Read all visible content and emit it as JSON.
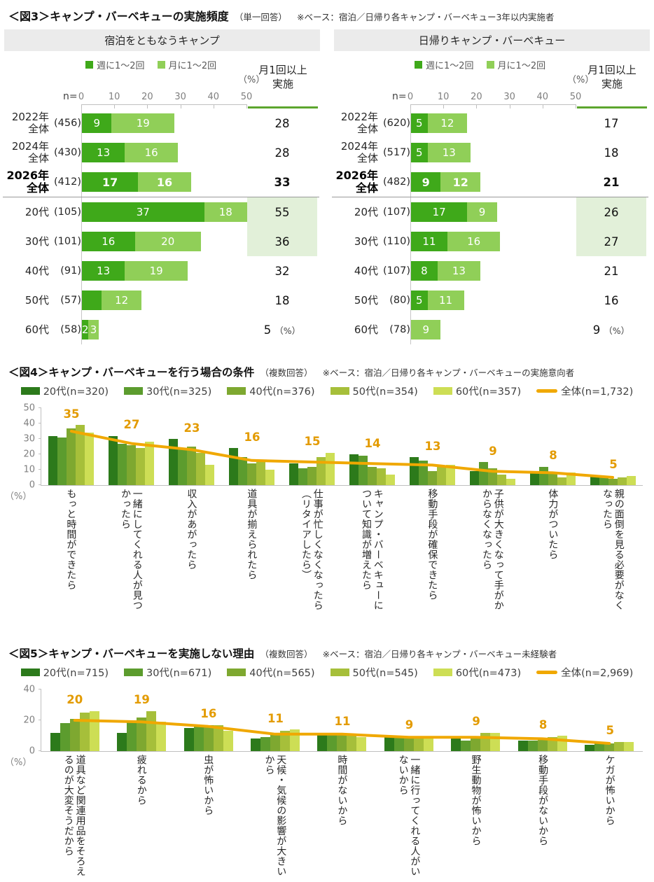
{
  "chart_data": [
    {
      "id": "fig3",
      "type": "bar",
      "subtype": "horizontal-stacked",
      "tag": "＜図3＞",
      "title": "キャンプ・バーベキューの実施頻度",
      "note": "（単一回答）",
      "base": "※ベース：宿泊／日帰り各キャンプ・バーベキュー3年以内実施者",
      "legend": [
        "週に1〜2回",
        "月に1〜2回"
      ],
      "colors": {
        "week": "#3FA91A",
        "month": "#90CF58",
        "highlight_bg": "#E2F0D9",
        "total_underline": "#5CA62E",
        "panel_header_bg": "#EBEBEB"
      },
      "xlim": [
        0,
        50
      ],
      "x_ticks": [
        0,
        10,
        20,
        30,
        40,
        50
      ],
      "pct_label": "（%）",
      "n_label": "n=",
      "total_header_lines": [
        "月1回以上",
        "実施"
      ],
      "panels": [
        {
          "title": "宿泊をともなうキャンプ",
          "rows": [
            {
              "label_lines": [
                "2022年",
                "全体"
              ],
              "n": "(456)",
              "week": 9,
              "month": 19,
              "total": "28"
            },
            {
              "label_lines": [
                "2024年",
                "全体"
              ],
              "n": "(430)",
              "week": 13,
              "month": 16,
              "total": "28"
            },
            {
              "label_lines": [
                "2026年",
                "全体"
              ],
              "n": "(412)",
              "week": 17,
              "month": 16,
              "total": "33",
              "bold": true,
              "divider": true
            },
            {
              "label_lines": [
                "20代"
              ],
              "n": "(105)",
              "week": 37,
              "month": 18,
              "total": "55",
              "highlight": true
            },
            {
              "label_lines": [
                "30代"
              ],
              "n": "(101)",
              "week": 16,
              "month": 20,
              "total": "36",
              "highlight": true
            },
            {
              "label_lines": [
                "40代"
              ],
              "n": "(91)",
              "week": 13,
              "month": 19,
              "total": "32"
            },
            {
              "label_lines": [
                "50代"
              ],
              "n": "(57)",
              "week": 6,
              "month": 12,
              "total": "18",
              "hide_week_label": true
            },
            {
              "label_lines": [
                "60代"
              ],
              "n": "(58)",
              "week": 2,
              "month": 3,
              "total": "5",
              "pct_suffix": "（%）"
            }
          ]
        },
        {
          "title": "日帰りキャンプ・バーベキュー",
          "rows": [
            {
              "label_lines": [
                "2022年",
                "全体"
              ],
              "n": "(620)",
              "week": 5,
              "month": 12,
              "total": "17"
            },
            {
              "label_lines": [
                "2024年",
                "全体"
              ],
              "n": "(517)",
              "week": 5,
              "month": 13,
              "total": "18"
            },
            {
              "label_lines": [
                "2026年",
                "全体"
              ],
              "n": "(482)",
              "week": 9,
              "month": 12,
              "total": "21",
              "bold": true,
              "divider": true
            },
            {
              "label_lines": [
                "20代"
              ],
              "n": "(107)",
              "week": 17,
              "month": 9,
              "total": "26",
              "highlight": true
            },
            {
              "label_lines": [
                "30代"
              ],
              "n": "(110)",
              "week": 11,
              "month": 16,
              "total": "27",
              "highlight": true
            },
            {
              "label_lines": [
                "40代"
              ],
              "n": "(107)",
              "week": 8,
              "month": 13,
              "total": "21"
            },
            {
              "label_lines": [
                "50代"
              ],
              "n": "(80)",
              "week": 5,
              "month": 11,
              "total": "16"
            },
            {
              "label_lines": [
                "60代"
              ],
              "n": "(78)",
              "week": 0,
              "month": 9,
              "total": "9",
              "pct_suffix": "（%）"
            }
          ]
        }
      ]
    },
    {
      "id": "fig4",
      "type": "bar",
      "subtype": "grouped-with-line",
      "tag": "＜図4＞",
      "title": "キャンプ・バーベキューを行う場合の条件",
      "note": "（複数回答）",
      "base": "※ベース：宿泊／日帰り各キャンプ・バーベキューの実施意向者",
      "ylim": [
        0,
        50
      ],
      "y_ticks": [
        0,
        10,
        20,
        30,
        40,
        50
      ],
      "pct_label": "（%）",
      "categories": [
        "もっと時間ができたら",
        "一緒にしてくれる人が見つかったら",
        "収入があがったら",
        "道具が揃えられたら",
        "仕事が忙しくなくなったら（リタイアしたら）",
        "キャンプ・バーベキューについて知識が増えたら",
        "移動手段が確保できたら",
        "子供が大きくなって手がかからなくなったら",
        "体力がついたら",
        "親の面倒を見る必要がなくなったら"
      ],
      "series": [
        {
          "name": "20代(n=320)",
          "color": "#2C7A1B",
          "values": [
            32,
            32,
            30,
            24,
            14,
            20,
            18,
            9,
            8,
            6
          ]
        },
        {
          "name": "30代(n=325)",
          "color": "#5C9C2E",
          "values": [
            31,
            27,
            24,
            18,
            11,
            19,
            16,
            15,
            12,
            5
          ]
        },
        {
          "name": "40代(n=376)",
          "color": "#7EA830",
          "values": [
            37,
            26,
            25,
            14,
            12,
            12,
            9,
            11,
            8,
            4
          ]
        },
        {
          "name": "50代(n=354)",
          "color": "#A6BF3A",
          "values": [
            39,
            24,
            21,
            15,
            18,
            11,
            12,
            7,
            5,
            5
          ]
        },
        {
          "name": "60代(n=357)",
          "color": "#CDDE55",
          "values": [
            34,
            28,
            13,
            10,
            21,
            7,
            13,
            4,
            8,
            6
          ]
        }
      ],
      "line": {
        "name": "全体(n=1,732)",
        "color": "#F0A800",
        "label_color": "#E39B00",
        "values": [
          35,
          27,
          23,
          16,
          15,
          14,
          13,
          9,
          8,
          5
        ]
      }
    },
    {
      "id": "fig5",
      "type": "bar",
      "subtype": "grouped-with-line",
      "tag": "＜図5＞",
      "title": "キャンプ・バーベキューを実施しない理由",
      "note": "（複数回答）",
      "base": "※ベース：宿泊／日帰り各キャンプ・バーベキュー未経験者",
      "ylim": [
        0,
        40
      ],
      "y_ticks": [
        0,
        20,
        40
      ],
      "pct_label": "（%）",
      "categories": [
        "道具など関連用品をそろえるのが大変そうだから",
        "疲れるから",
        "虫が怖いから",
        "天候・気候の影響が大きいから",
        "時間がないから",
        "一緒に行ってくれる人がいないから",
        "野生動物が怖いから",
        "移動手段がないから",
        "ケガが怖いから"
      ],
      "series": [
        {
          "name": "20代(n=715)",
          "color": "#2C7A1B",
          "values": [
            12,
            12,
            15,
            8,
            12,
            10,
            8,
            7,
            4
          ]
        },
        {
          "name": "30代(n=671)",
          "color": "#5C9C2E",
          "values": [
            18,
            20,
            16,
            9,
            12,
            10,
            7,
            7,
            5
          ]
        },
        {
          "name": "40代(n=565)",
          "color": "#7EA830",
          "values": [
            21,
            22,
            17,
            11,
            11,
            9,
            8,
            8,
            5
          ]
        },
        {
          "name": "50代(n=545)",
          "color": "#A6BF3A",
          "values": [
            25,
            26,
            17,
            13,
            10,
            9,
            12,
            9,
            6
          ]
        },
        {
          "name": "60代(n=473)",
          "color": "#CDDE55",
          "values": [
            26,
            19,
            13,
            14,
            9,
            8,
            12,
            10,
            6
          ]
        }
      ],
      "line": {
        "name": "全体(n=2,969)",
        "color": "#F0A800",
        "label_color": "#E39B00",
        "values": [
          20,
          19,
          16,
          11,
          11,
          9,
          9,
          8,
          5
        ]
      }
    }
  ]
}
